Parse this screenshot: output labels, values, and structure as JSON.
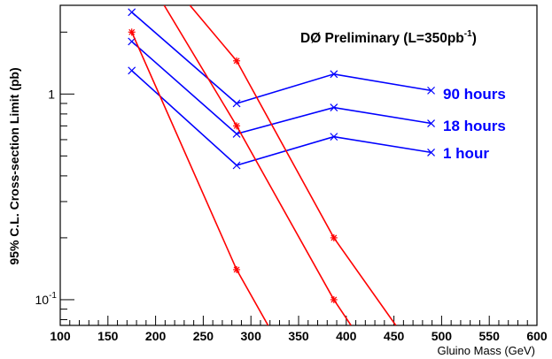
{
  "chart_data": {
    "type": "line",
    "title": "DØ Preliminary (L=350pb",
    "title_superscript": "-1",
    "title_close": ")",
    "xlabel": "Gluino Mass (GeV)",
    "ylabel": "95% C.L. Cross-section Limit (pb)",
    "xlim": [
      100,
      600
    ],
    "ylim": [
      0.075,
      2.7
    ],
    "yscale": "log",
    "grid": false,
    "x_ticks": [
      100,
      150,
      200,
      250,
      300,
      350,
      400,
      450,
      500,
      550,
      600
    ],
    "y_tick_labels": [
      {
        "value": 1,
        "base": "1",
        "exp": ""
      },
      {
        "value": 0.1,
        "base": "10",
        "exp": "-1"
      }
    ],
    "series": [
      {
        "name": "90 hours",
        "color": "#0000ff",
        "marker": "x",
        "x": [
          175,
          285,
          387,
          489
        ],
        "y": [
          2.5,
          0.9,
          1.25,
          1.04
        ]
      },
      {
        "name": "18 hours",
        "color": "#0000ff",
        "marker": "x",
        "x": [
          175,
          285,
          387,
          489
        ],
        "y": [
          1.8,
          0.64,
          0.86,
          0.72
        ]
      },
      {
        "name": "1 hour",
        "color": "#0000ff",
        "marker": "x",
        "x": [
          175,
          285,
          387,
          489
        ],
        "y": [
          1.3,
          0.45,
          0.62,
          0.52
        ]
      },
      {
        "name": "",
        "color": "#ff0000",
        "marker": "*",
        "x": [
          175,
          285,
          318
        ],
        "y": [
          2.0,
          0.14,
          0.075
        ]
      },
      {
        "name": "",
        "color": "#ff0000",
        "marker": "*",
        "x": [
          209,
          285,
          387,
          405
        ],
        "y": [
          2.7,
          0.7,
          0.1,
          0.075
        ]
      },
      {
        "name": "",
        "color": "#ff0000",
        "marker": "*",
        "x": [
          236,
          285,
          387,
          452
        ],
        "y": [
          2.7,
          1.45,
          0.2,
          0.075
        ]
      }
    ],
    "marker_points": {
      "red_markers": [
        {
          "series": 3,
          "x": [
            175,
            285
          ]
        },
        {
          "series": 4,
          "x": [
            285,
            387
          ]
        },
        {
          "series": 5,
          "x": [
            285,
            387
          ]
        }
      ]
    }
  }
}
